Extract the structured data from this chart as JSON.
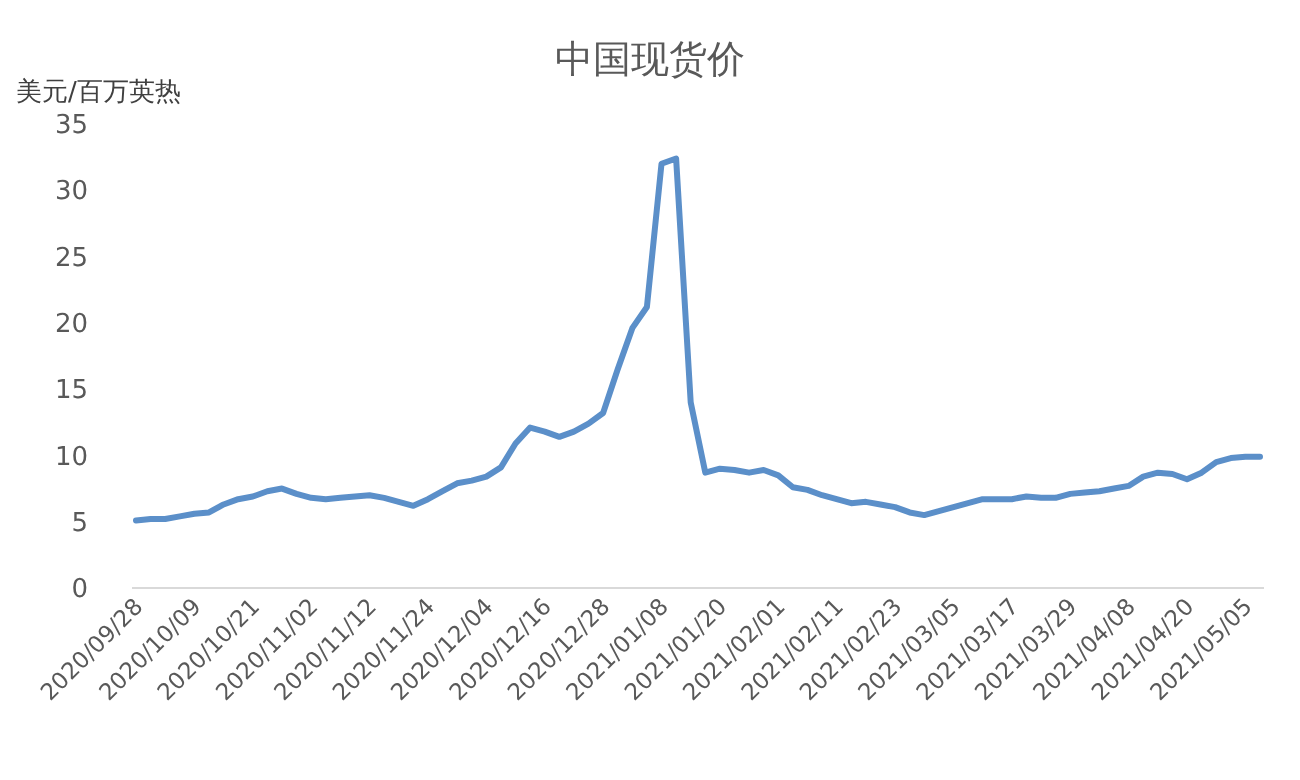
{
  "chart_data": {
    "type": "line",
    "title": "中国现货价",
    "ylabel": "美元/百万英热",
    "categories": [
      "2020/09/28",
      null,
      null,
      null,
      "2020/10/09",
      null,
      null,
      null,
      "2020/10/21",
      null,
      null,
      null,
      "2020/11/02",
      null,
      null,
      null,
      "2020/11/12",
      null,
      null,
      null,
      "2020/11/24",
      null,
      null,
      null,
      "2020/12/04",
      null,
      null,
      null,
      "2020/12/16",
      null,
      null,
      null,
      "2020/12/28",
      null,
      null,
      null,
      "2021/01/08",
      null,
      null,
      null,
      "2021/01/20",
      null,
      null,
      null,
      "2021/02/01",
      null,
      null,
      null,
      "2021/02/11",
      null,
      null,
      null,
      "2021/02/23",
      null,
      null,
      null,
      "2021/03/05",
      null,
      null,
      null,
      "2021/03/17",
      null,
      null,
      null,
      "2021/03/29",
      null,
      null,
      null,
      "2021/04/08",
      null,
      null,
      null,
      "2021/04/20",
      null,
      null,
      null,
      "2021/05/05",
      null
    ],
    "series": [
      {
        "color": "#5b8fc9",
        "values": [
          5.1,
          5.2,
          5.2,
          5.4,
          5.6,
          5.7,
          6.3,
          6.7,
          6.9,
          7.3,
          7.5,
          7.1,
          6.8,
          6.7,
          6.8,
          6.9,
          7.0,
          6.8,
          6.5,
          6.2,
          6.7,
          7.3,
          7.9,
          8.1,
          8.4,
          9.1,
          10.9,
          12.1,
          11.8,
          11.4,
          11.8,
          12.4,
          13.2,
          16.5,
          19.6,
          21.2,
          32.0,
          32.4,
          14,
          8.7,
          9.0,
          8.9,
          8.7,
          8.9,
          8.5,
          7.6,
          7.4,
          7.0,
          6.7,
          6.4,
          6.5,
          6.3,
          6.1,
          5.7,
          5.5,
          5.8,
          6.1,
          6.4,
          6.7,
          6.7,
          6.7,
          6.9,
          6.8,
          6.8,
          7.1,
          7.2,
          7.3,
          7.5,
          7.7,
          8.4,
          8.7,
          8.6,
          8.2,
          8.7,
          9.5,
          9.8,
          9.9,
          9.9
        ]
      }
    ],
    "ylim": [
      0,
      35
    ],
    "yticks": [
      0,
      5,
      10,
      15,
      20,
      25,
      30,
      35
    ],
    "grid": false,
    "marker": "none",
    "line_style": "solid"
  }
}
